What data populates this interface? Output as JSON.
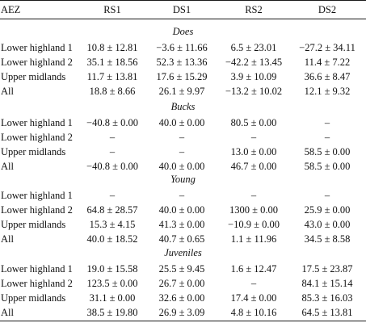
{
  "table": {
    "headers": [
      "AEZ",
      "RS1",
      "DS1",
      "RS2",
      "DS2"
    ],
    "sections": [
      {
        "title": "Does",
        "rows": [
          [
            "Lower highland 1",
            "10.8 ± 12.81",
            "−3.6 ± 11.66",
            "6.5 ± 23.01",
            "−27.2 ± 34.11"
          ],
          [
            "Lower highland 2",
            "35.1 ± 18.56",
            "52.3 ± 13.36",
            "−42.2 ± 13.45",
            "11.4 ± 7.22"
          ],
          [
            "Upper midlands",
            "11.7 ± 13.81",
            "17.6 ± 15.29",
            "3.9 ± 10.09",
            "36.6 ± 8.47"
          ],
          [
            "All",
            "18.8 ± 8.66",
            "26.1 ± 9.97",
            "−13.2 ± 10.02",
            "12.1 ± 9.32"
          ]
        ]
      },
      {
        "title": "Bucks",
        "rows": [
          [
            "Lower highland 1",
            "−40.8 ± 0.00",
            "40.0 ± 0.00",
            "80.5 ± 0.00",
            "–"
          ],
          [
            "Lower highland 2",
            "–",
            "–",
            "–",
            "–"
          ],
          [
            "Upper midlands",
            "–",
            "–",
            "13.0 ± 0.00",
            "58.5 ± 0.00"
          ],
          [
            "All",
            "−40.8 ± 0.00",
            "40.0 ± 0.00",
            "46.7 ± 0.00",
            "58.5 ± 0.00"
          ]
        ]
      },
      {
        "title": "Young",
        "rows": [
          [
            "Lower highland 1",
            "–",
            "–",
            "–",
            "–"
          ],
          [
            "Lower highland 2",
            "64.8 ± 28.57",
            "40.0 ± 0.00",
            "1300 ± 0.00",
            "25.9 ± 0.00"
          ],
          [
            "Upper midlands",
            "15.3 ± 4.15",
            "41.3 ± 0.00",
            "−10.9 ± 0.00",
            "43.0 ± 0.00"
          ],
          [
            "All",
            "40.0 ± 18.52",
            "40.7 ± 0.65",
            "1.1 ± 11.96",
            "34.5 ± 8.58"
          ]
        ]
      },
      {
        "title": "Juveniles",
        "rows": [
          [
            "Lower highland 1",
            "19.0 ± 15.58",
            "25.5 ± 9.45",
            "1.6 ± 12.47",
            "17.5 ± 23.87"
          ],
          [
            "Lower highland 2",
            "123.5 ± 0.00",
            "26.7 ± 0.00",
            "–",
            "84.1 ± 15.14"
          ],
          [
            "Upper midlands",
            "31.1 ± 0.00",
            "32.6 ± 0.00",
            "17.4 ± 0.00",
            "85.3 ± 16.03"
          ],
          [
            "All",
            "38.5 ± 19.80",
            "26.9 ± 3.09",
            "4.8 ± 10.16",
            "64.5 ± 13.81"
          ]
        ]
      }
    ]
  }
}
